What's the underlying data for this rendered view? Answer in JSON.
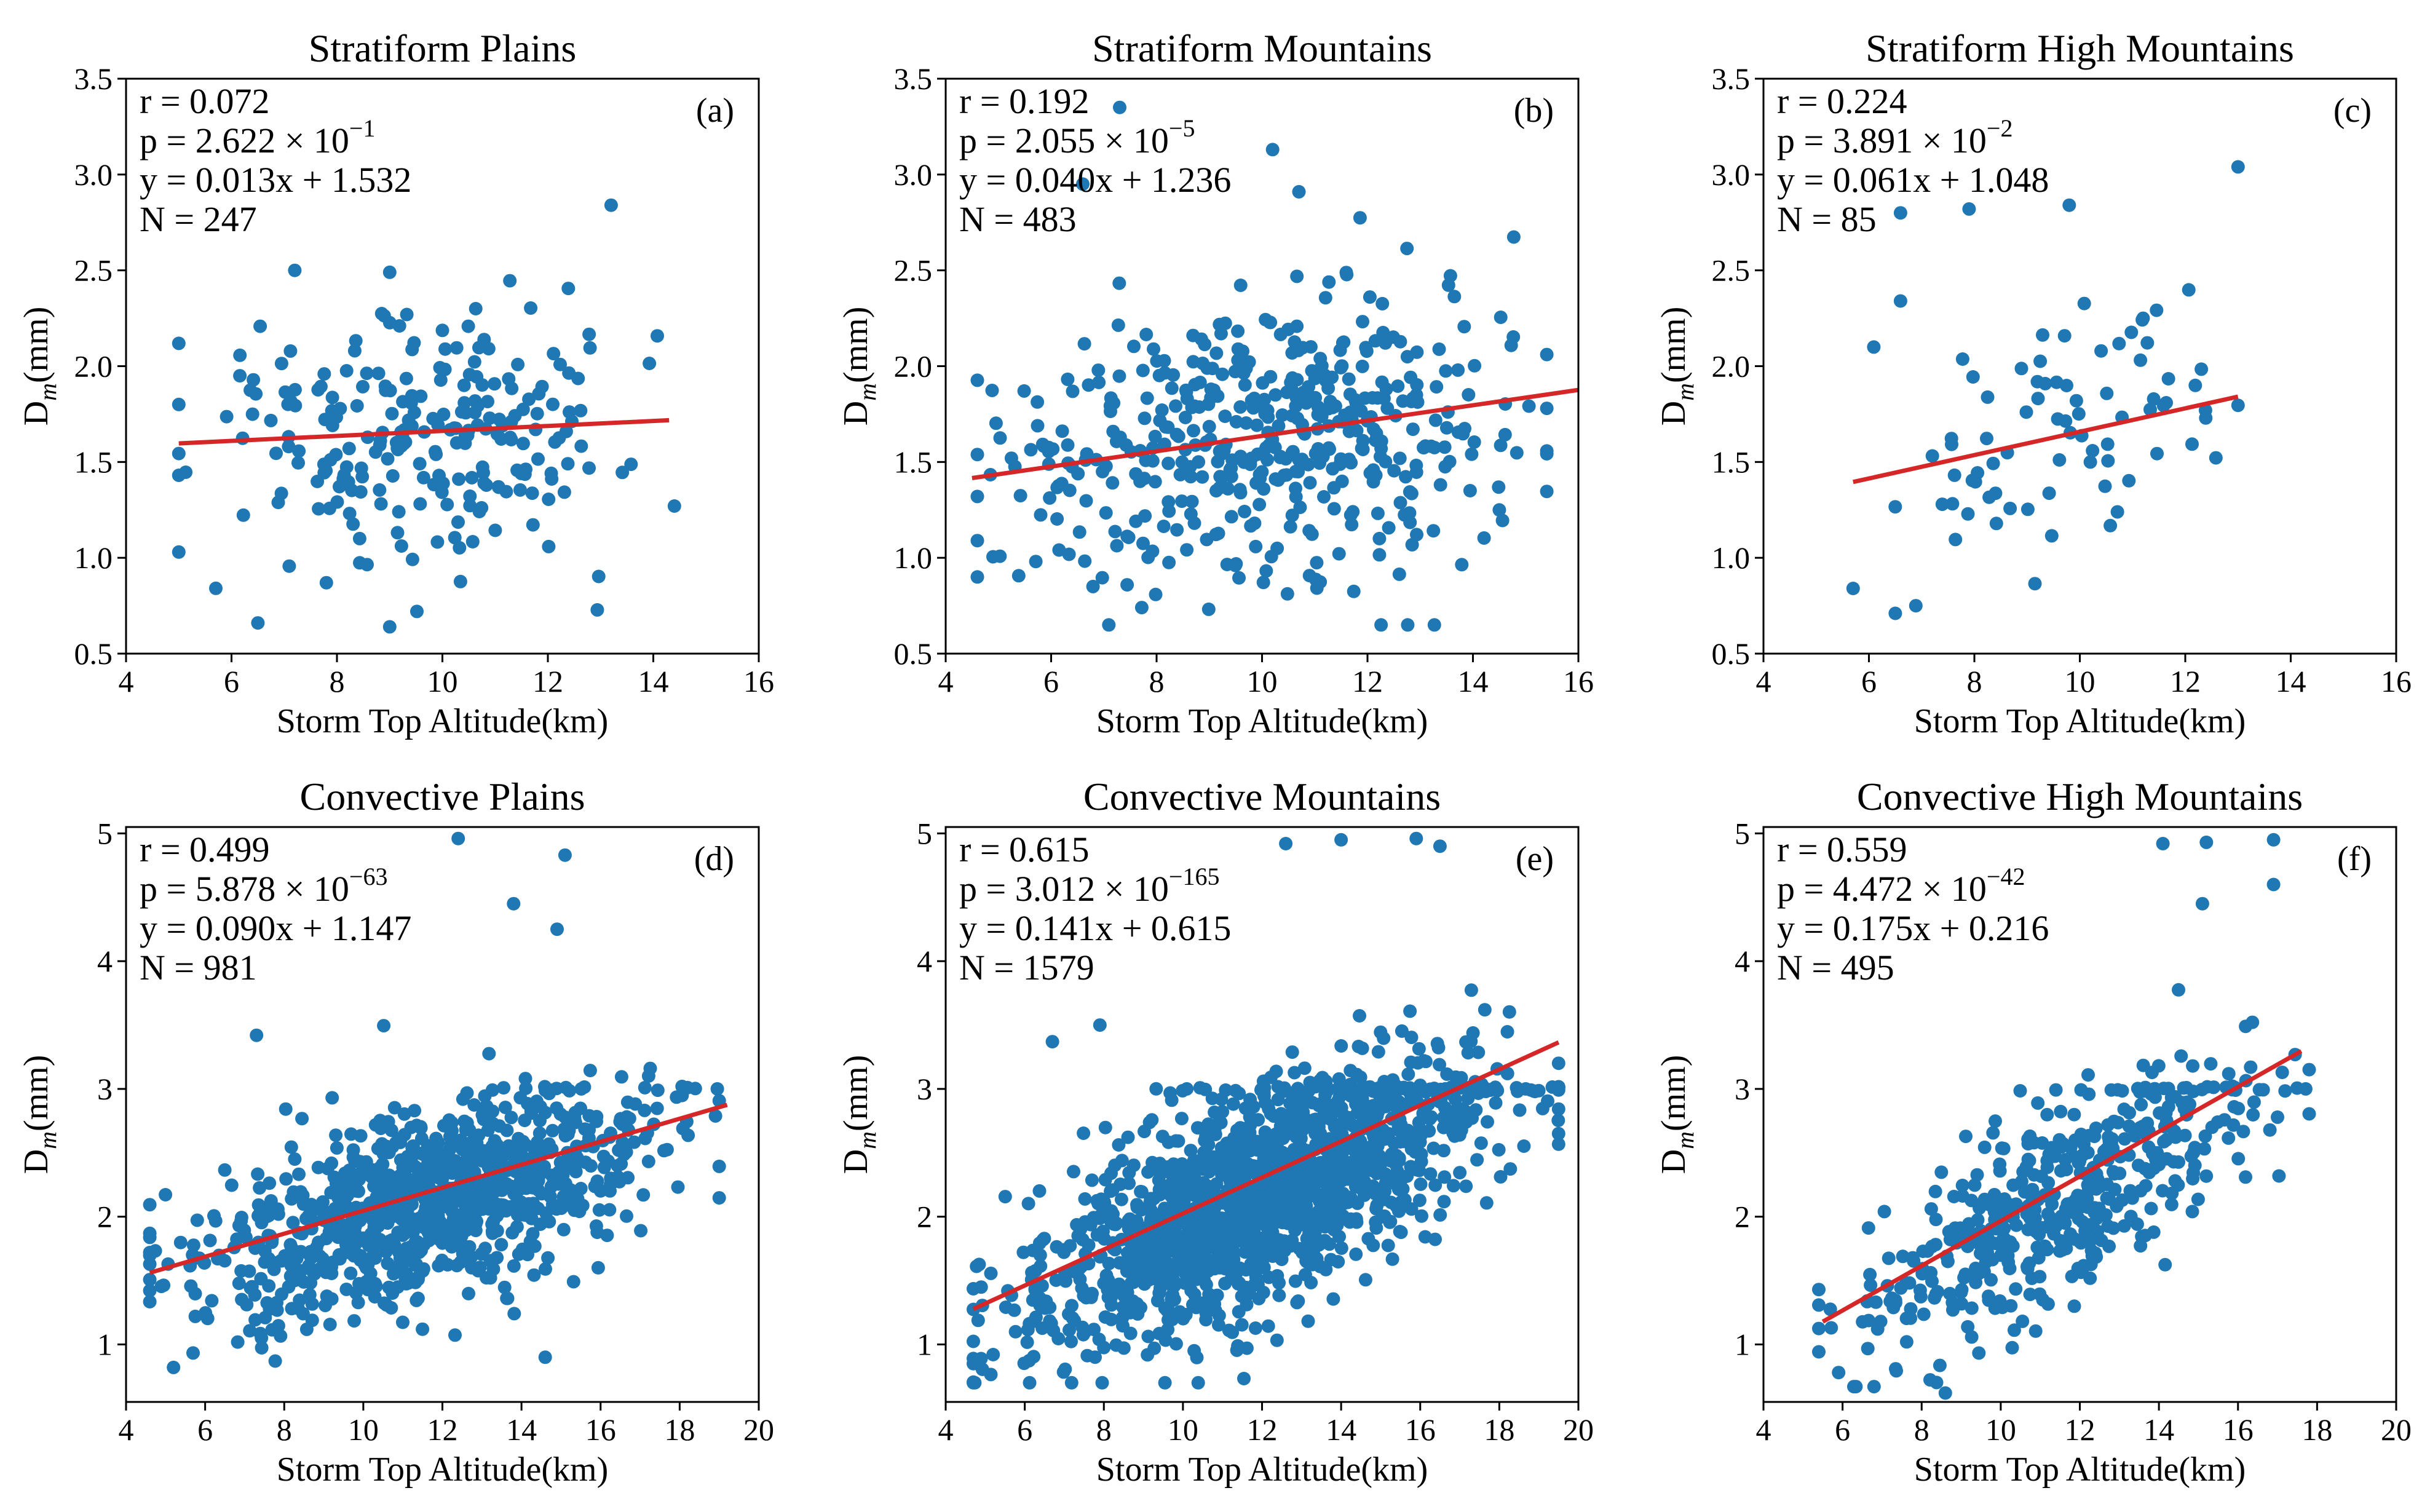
{
  "colors": {
    "points": "#1f77b4",
    "fit_line": "#d62728",
    "axes": "#000000",
    "background": "#ffffff"
  },
  "chart_data": [
    {
      "type": "scatter",
      "title": "Stratiform Plains",
      "panel_label": "(a)",
      "xlabel": "Storm Top Altitude(km)",
      "ylabel": "D_m(mm)",
      "xlim": [
        4,
        16
      ],
      "ylim": [
        0.5,
        3.5
      ],
      "xticks": [
        4,
        6,
        8,
        10,
        12,
        14,
        16
      ],
      "yticks": [
        0.5,
        1.0,
        1.5,
        2.0,
        2.5,
        3.0,
        3.5
      ],
      "ytick_labels": [
        "0.5",
        "1.0",
        "1.5",
        "2.0",
        "2.5",
        "3.0",
        "3.5"
      ],
      "stats": {
        "r": "r = 0.072",
        "p": "p = 2.622 × 10",
        "p_exp": "−1",
        "fit": "y = 0.013x + 1.532",
        "n": "N = 247"
      },
      "fit_line": {
        "slope": 0.013,
        "intercept": 1.532,
        "x_range": [
          5.0,
          14.3
        ]
      },
      "points": {
        "count": 247,
        "x_range": [
          5.0,
          14.4
        ],
        "y_range": [
          0.63,
          2.84
        ],
        "y_center": 1.65,
        "y_spread": 0.34,
        "slope": 0.013,
        "outliers": [
          [
            13.2,
            2.84
          ],
          [
            9.0,
            2.49
          ],
          [
            7.2,
            2.5
          ],
          [
            9.0,
            0.64
          ],
          [
            6.5,
            0.66
          ],
          [
            7.8,
            0.87
          ],
          [
            5.0,
            1.03
          ],
          [
            14.4,
            1.27
          ]
        ]
      }
    },
    {
      "type": "scatter",
      "title": "Stratiform Mountains",
      "panel_label": "(b)",
      "xlabel": "Storm Top Altitude(km)",
      "ylabel": "D_m(mm)",
      "xlim": [
        4,
        16
      ],
      "ylim": [
        0.5,
        3.5
      ],
      "xticks": [
        4,
        6,
        8,
        10,
        12,
        14,
        16
      ],
      "yticks": [
        0.5,
        1.0,
        1.5,
        2.0,
        2.5,
        3.0,
        3.5
      ],
      "ytick_labels": [
        "0.5",
        "1.0",
        "1.5",
        "2.0",
        "2.5",
        "3.0",
        "3.5"
      ],
      "stats": {
        "r": "r = 0.192",
        "p": "p = 2.055 × 10",
        "p_exp": "−5",
        "fit": "y = 0.040x + 1.236",
        "n": "N = 483"
      },
      "fit_line": {
        "slope": 0.04,
        "intercept": 1.236,
        "x_range": [
          4.5,
          16.0
        ]
      },
      "points": {
        "count": 483,
        "x_range": [
          4.6,
          15.4
        ],
        "y_range": [
          0.6,
          3.35
        ],
        "y_center": 1.62,
        "y_spread": 0.38,
        "slope": 0.04,
        "outliers": [
          [
            7.3,
            3.35
          ],
          [
            10.2,
            3.13
          ],
          [
            10.7,
            2.91
          ],
          [
            6.6,
            2.95
          ],
          [
            15.4,
            1.78
          ],
          [
            14.5,
            1.25
          ],
          [
            4.6,
            0.9
          ]
        ]
      }
    },
    {
      "type": "scatter",
      "title": "Stratiform High Mountains",
      "panel_label": "(c)",
      "xlabel": "Storm Top Altitude(km)",
      "ylabel": "D_m(mm)",
      "xlim": [
        4,
        16
      ],
      "ylim": [
        0.5,
        3.5
      ],
      "xticks": [
        4,
        6,
        8,
        10,
        12,
        14,
        16
      ],
      "yticks": [
        0.5,
        1.0,
        1.5,
        2.0,
        2.5,
        3.0,
        3.5
      ],
      "ytick_labels": [
        "0.5",
        "1.0",
        "1.5",
        "2.0",
        "2.5",
        "3.0",
        "3.5"
      ],
      "stats": {
        "r": "r = 0.224",
        "p": "p = 3.891 × 10",
        "p_exp": "−2",
        "fit": "y = 0.061x + 1.048",
        "n": "N = 85"
      },
      "fit_line": {
        "slope": 0.061,
        "intercept": 1.048,
        "x_range": [
          5.7,
          13.0
        ]
      },
      "points": {
        "count": 85,
        "x_range": [
          5.7,
          13.0
        ],
        "y_range": [
          0.7,
          3.04
        ],
        "y_center": 1.6,
        "y_spread": 0.32,
        "slope": 0.061,
        "outliers": [
          [
            13.0,
            3.04
          ],
          [
            9.8,
            2.84
          ],
          [
            7.9,
            2.82
          ],
          [
            6.6,
            2.8
          ],
          [
            6.6,
            2.34
          ],
          [
            11.2,
            2.25
          ],
          [
            5.7,
            0.84
          ],
          [
            6.5,
            0.71
          ]
        ]
      }
    },
    {
      "type": "scatter",
      "title": "Convective Plains",
      "panel_label": "(d)",
      "xlabel": "Storm Top Altitude(km)",
      "ylabel": "D_m(mm)",
      "xlim": [
        4,
        20
      ],
      "ylim": [
        0.55,
        5.05
      ],
      "xticks": [
        4,
        6,
        8,
        10,
        12,
        14,
        16,
        18,
        20
      ],
      "yticks": [
        1,
        2,
        3,
        4,
        5
      ],
      "ytick_labels": [
        "1",
        "2",
        "3",
        "4",
        "5"
      ],
      "stats": {
        "r": "r = 0.499",
        "p": "p = 5.878 × 10",
        "p_exp": "−63",
        "fit": "y = 0.090x + 1.147",
        "n": "N = 981"
      },
      "fit_line": {
        "slope": 0.09,
        "intercept": 1.147,
        "x_range": [
          4.6,
          19.2
        ]
      },
      "points": {
        "count": 981,
        "x_range": [
          4.6,
          19.0
        ],
        "y_range": [
          0.82,
          4.97
        ],
        "y_center": 2.15,
        "y_spread": 0.36,
        "slope": 0.09,
        "cap_band": 3.0,
        "outliers": [
          [
            12.4,
            4.96
          ],
          [
            15.1,
            4.83
          ],
          [
            13.8,
            4.45
          ],
          [
            14.9,
            4.25
          ],
          [
            5.2,
            0.82
          ],
          [
            14.6,
            0.9
          ],
          [
            7.3,
            3.42
          ]
        ]
      }
    },
    {
      "type": "scatter",
      "title": "Convective Mountains",
      "panel_label": "(e)",
      "xlabel": "Storm Top Altitude(km)",
      "ylabel": "D_m(mm)",
      "xlim": [
        4,
        20
      ],
      "ylim": [
        0.55,
        5.05
      ],
      "xticks": [
        4,
        6,
        8,
        10,
        12,
        14,
        16,
        18,
        20
      ],
      "yticks": [
        1,
        2,
        3,
        4,
        5
      ],
      "ytick_labels": [
        "1",
        "2",
        "3",
        "4",
        "5"
      ],
      "stats": {
        "r": "r = 0.615",
        "p": "p = 3.012 × 10",
        "p_exp": "−165",
        "fit": "y = 0.141x + 0.615",
        "n": "N = 1579"
      },
      "fit_line": {
        "slope": 0.141,
        "intercept": 0.615,
        "x_range": [
          4.7,
          19.5
        ]
      },
      "points": {
        "count": 1579,
        "x_range": [
          4.7,
          19.5
        ],
        "y_range": [
          0.65,
          4.97
        ],
        "y_center": 2.2,
        "y_spread": 0.42,
        "slope": 0.141,
        "cap_band": 3.0,
        "outliers": [
          [
            15.9,
            4.96
          ],
          [
            16.5,
            4.9
          ],
          [
            14.0,
            4.95
          ],
          [
            12.6,
            4.92
          ],
          [
            19.5,
            2.65
          ],
          [
            4.7,
            0.85
          ],
          [
            6.7,
            3.37
          ],
          [
            7.9,
            3.5
          ]
        ]
      }
    },
    {
      "type": "scatter",
      "title": "Convective High Mountains",
      "panel_label": "(f)",
      "xlabel": "Storm Top Altitude(km)",
      "ylabel": "D_m(mm)",
      "xlim": [
        4,
        20
      ],
      "ylim": [
        0.55,
        5.05
      ],
      "xticks": [
        4,
        6,
        8,
        10,
        12,
        14,
        16,
        18,
        20
      ],
      "yticks": [
        1,
        2,
        3,
        4,
        5
      ],
      "ytick_labels": [
        "1",
        "2",
        "3",
        "4",
        "5"
      ],
      "stats": {
        "r": "r = 0.559",
        "p": "p = 4.472 × 10",
        "p_exp": "−42",
        "fit": "y = 0.175x + 0.216",
        "n": "N = 495"
      },
      "fit_line": {
        "slope": 0.175,
        "intercept": 0.216,
        "x_range": [
          5.5,
          17.6
        ]
      },
      "points": {
        "count": 495,
        "x_range": [
          5.4,
          17.8
        ],
        "y_range": [
          0.62,
          4.97
        ],
        "y_center": 2.15,
        "y_spread": 0.4,
        "slope": 0.175,
        "cap_band": 3.0,
        "outliers": [
          [
            16.9,
            4.95
          ],
          [
            15.2,
            4.93
          ],
          [
            14.1,
            4.92
          ],
          [
            15.1,
            4.45
          ],
          [
            16.9,
            4.6
          ],
          [
            5.4,
            1.43
          ],
          [
            5.9,
            0.78
          ],
          [
            8.6,
            0.62
          ]
        ]
      }
    }
  ]
}
